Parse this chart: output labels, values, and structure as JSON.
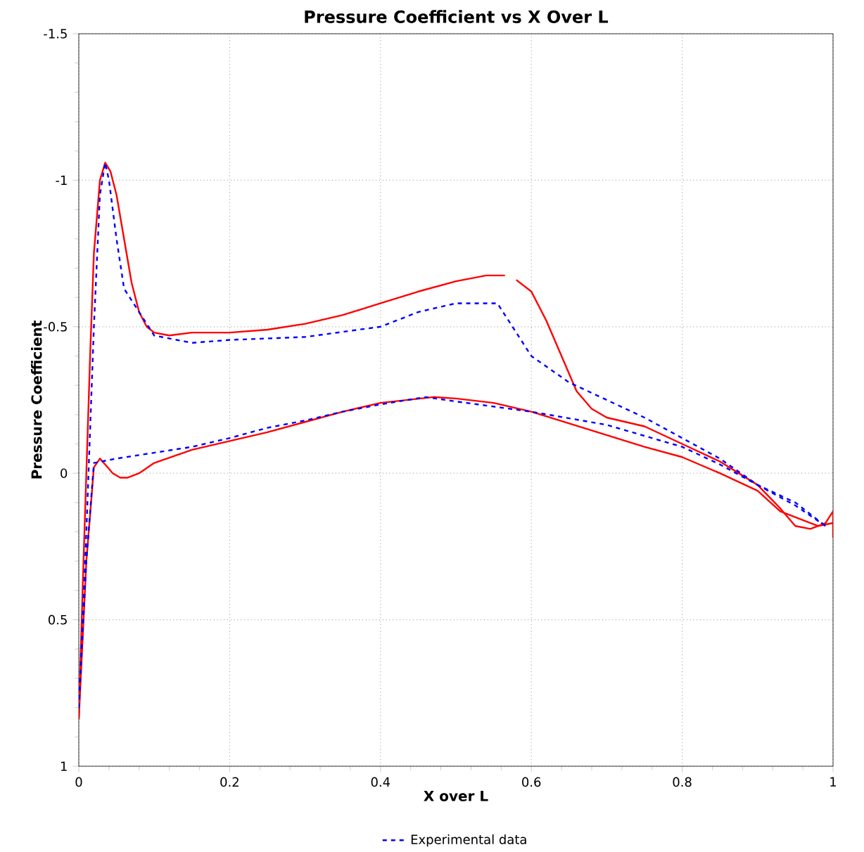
{
  "chart_data": {
    "type": "line",
    "title": "Pressure Coefficient vs X Over L",
    "xlabel": "X over L",
    "ylabel": "Pressure Coefficient",
    "xlim": [
      0,
      1
    ],
    "ylim": [
      1,
      -1.5
    ],
    "xticks": [
      0,
      0.2,
      0.4,
      0.6,
      0.8,
      1
    ],
    "yticks": [
      -1.5,
      -1,
      -0.5,
      0,
      0.5,
      1
    ],
    "grid": true,
    "legend": "bottom",
    "series": [
      {
        "color": "#ff0000",
        "line_style": "solid",
        "x": [
          0,
          0.005,
          0.01,
          0.015,
          0.02,
          0.028,
          0.035,
          0.042,
          0.05,
          0.06,
          0.07,
          0.08,
          0.09,
          0.1,
          0.12,
          0.15,
          0.2,
          0.25,
          0.3,
          0.35,
          0.4,
          0.45,
          0.5,
          0.54,
          0.565,
          0.572,
          0.58,
          0.6,
          0.62,
          0.64,
          0.66,
          0.68,
          0.7,
          0.75,
          0.8,
          0.85,
          0.9,
          0.93,
          0.95,
          0.97,
          0.99,
          1.0,
          1.0
        ],
        "values": [
          0.84,
          0.4,
          0,
          -0.4,
          -0.75,
          -1.0,
          -1.06,
          -1.03,
          -0.95,
          -0.8,
          -0.65,
          -0.55,
          -0.5,
          -0.48,
          -0.47,
          -0.48,
          -0.48,
          -0.49,
          -0.51,
          -0.54,
          -0.58,
          -0.62,
          -0.655,
          -0.675,
          -0.675,
          null,
          -0.66,
          -0.62,
          -0.52,
          -0.4,
          -0.28,
          -0.22,
          -0.19,
          -0.16,
          -0.1,
          -0.04,
          0.04,
          0.12,
          0.18,
          0.19,
          0.17,
          0.13,
          0.22
        ]
      },
      {
        "color": "#ff0000",
        "line_style": "solid",
        "x": [
          0,
          0.01,
          0.02,
          0.028,
          0.035,
          0.045,
          0.055,
          0.065,
          0.08,
          0.1,
          0.15,
          0.2,
          0.25,
          0.3,
          0.35,
          0.4,
          0.47,
          0.5,
          0.55,
          0.6,
          0.65,
          0.7,
          0.75,
          0.8,
          0.85,
          0.9,
          0.93,
          0.96,
          0.98,
          1.0
        ],
        "values": [
          0.84,
          0.3,
          -0.02,
          -0.05,
          -0.03,
          0.0,
          0.015,
          0.015,
          0.0,
          -0.035,
          -0.08,
          -0.11,
          -0.14,
          -0.175,
          -0.21,
          -0.24,
          -0.26,
          -0.255,
          -0.24,
          -0.21,
          -0.17,
          -0.13,
          -0.09,
          -0.055,
          0.0,
          0.06,
          0.13,
          0.16,
          0.18,
          0.17
        ]
      },
      {
        "name": "Experimental data",
        "color": "#0000ff",
        "line_style": "dashed",
        "x": [
          0,
          0.01,
          0.02,
          0.028,
          0.035,
          0.04,
          0.05,
          0.06,
          0.08,
          0.1,
          0.15,
          0.2,
          0.3,
          0.4,
          0.45,
          0.5,
          0.555,
          0.6,
          0.65,
          0.7,
          0.75,
          0.8,
          0.85,
          0.9,
          0.95,
          0.99
        ],
        "values": [
          0.8,
          0.2,
          -0.5,
          -0.95,
          -1.06,
          -1.0,
          -0.8,
          -0.63,
          -0.55,
          -0.47,
          -0.445,
          -0.455,
          -0.465,
          -0.5,
          -0.55,
          -0.58,
          -0.58,
          -0.4,
          -0.31,
          -0.25,
          -0.19,
          -0.12,
          -0.05,
          0.04,
          0.11,
          0.18
        ]
      },
      {
        "color": "#0000ff",
        "line_style": "dashed",
        "x": [
          0,
          0.01,
          0.02,
          0.05,
          0.1,
          0.15,
          0.2,
          0.25,
          0.3,
          0.35,
          0.4,
          0.46,
          0.5,
          0.6,
          0.7,
          0.8,
          0.85,
          0.9,
          0.95,
          0.99
        ],
        "values": [
          0.8,
          0.3,
          -0.035,
          -0.05,
          -0.07,
          -0.09,
          -0.12,
          -0.155,
          -0.18,
          -0.21,
          -0.235,
          -0.26,
          -0.245,
          -0.21,
          -0.165,
          -0.09,
          -0.03,
          0.04,
          0.1,
          0.18
        ]
      }
    ]
  }
}
